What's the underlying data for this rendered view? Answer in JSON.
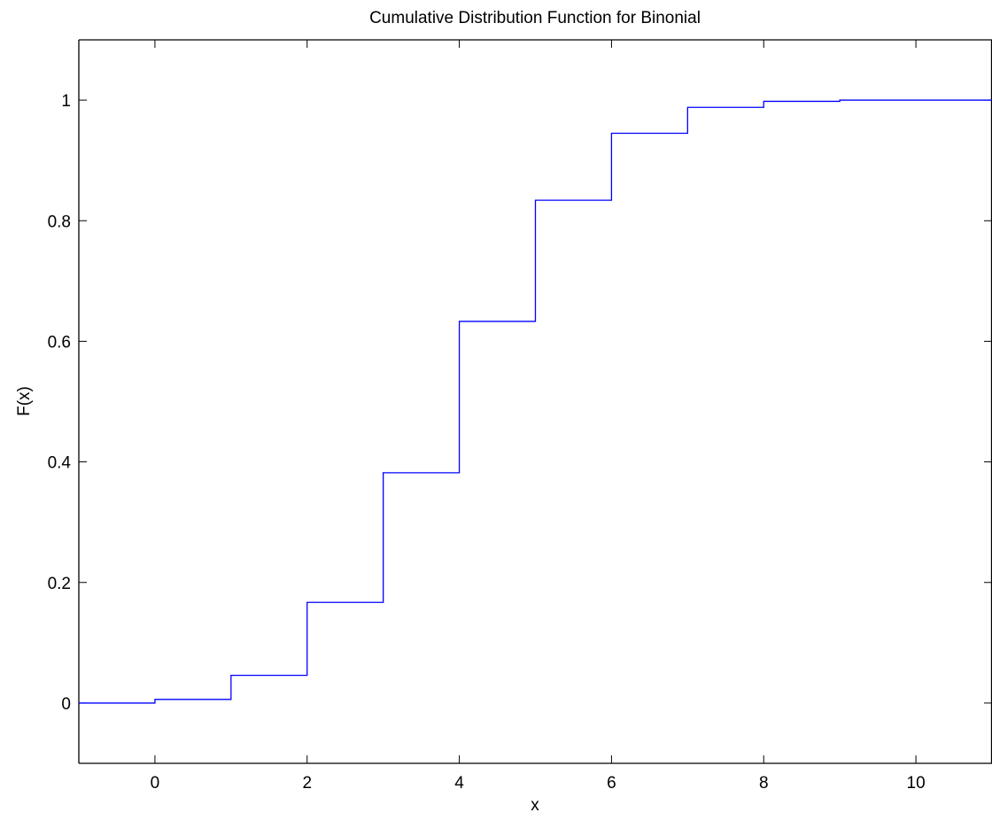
{
  "colors": {
    "series_line": "#0000ff",
    "axes": "#000000",
    "background": "#ffffff"
  },
  "chart_data": {
    "type": "line",
    "step": "post",
    "title": "Cumulative Distribution Function for Binonial",
    "xlabel": "x",
    "ylabel": "F(x)",
    "xlim": [
      -1,
      11
    ],
    "ylim": [
      -0.1,
      1.1
    ],
    "grid": false,
    "legend": "none",
    "xticks": [
      0,
      2,
      4,
      6,
      8,
      10
    ],
    "xtick_labels": [
      "0",
      "2",
      "4",
      "6",
      "8",
      "10"
    ],
    "yticks": [
      0,
      0.2,
      0.4,
      0.6,
      0.8,
      1
    ],
    "ytick_labels": [
      "0",
      "0.2",
      "0.4",
      "0.6",
      "0.8",
      "1"
    ],
    "series": [
      {
        "x": [
          -1,
          0,
          1,
          2,
          3,
          4,
          5,
          6,
          7,
          8,
          9,
          10,
          11
        ],
        "y": [
          0,
          0.006,
          0.046,
          0.167,
          0.382,
          0.633,
          0.834,
          0.945,
          0.988,
          0.998,
          1.0,
          1.0,
          1.0
        ]
      }
    ]
  }
}
